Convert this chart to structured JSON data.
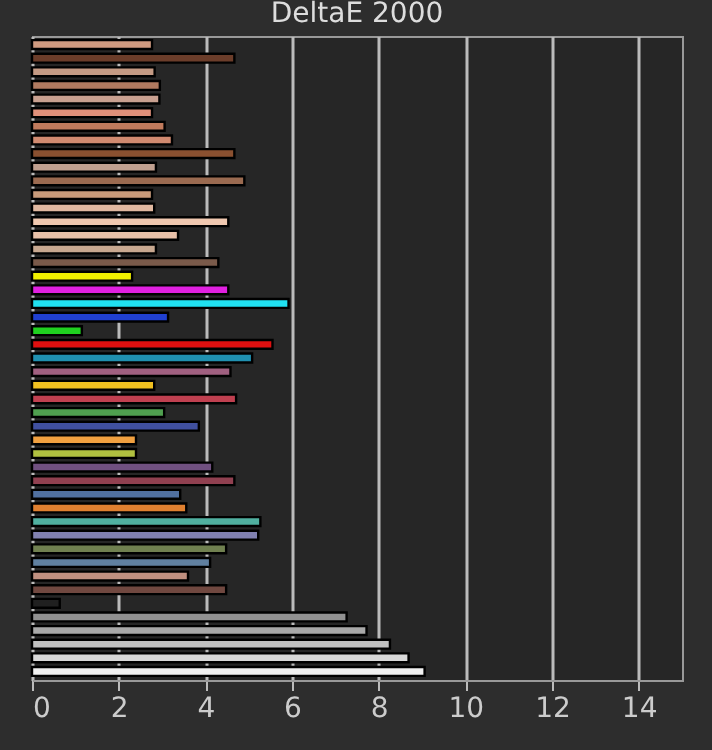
{
  "chart_data": {
    "type": "bar",
    "orientation": "horizontal",
    "title": "DeltaE 2000",
    "categories": [
      null,
      null,
      null,
      null,
      null,
      null,
      null,
      null,
      null,
      null,
      null,
      null,
      null,
      null,
      null,
      null,
      null,
      null,
      null,
      null,
      null,
      null,
      null,
      null,
      null,
      null,
      null,
      null,
      null,
      null,
      null,
      null,
      null,
      null,
      null,
      null,
      null,
      null,
      null,
      null,
      null,
      null,
      null,
      null,
      null,
      null,
      null
    ],
    "values": [
      2.77,
      4.67,
      2.83,
      2.95,
      2.94,
      2.77,
      3.06,
      3.23,
      4.67,
      2.86,
      4.9,
      2.77,
      2.82,
      4.53,
      3.37,
      2.86,
      4.3,
      2.31,
      4.53,
      5.92,
      3.14,
      1.15,
      5.55,
      5.08,
      4.58,
      2.82,
      4.71,
      3.05,
      3.85,
      2.4,
      2.4,
      4.16,
      4.67,
      3.42,
      3.56,
      5.27,
      5.22,
      4.48,
      4.11,
      3.6,
      4.48,
      0.64,
      7.26,
      7.72,
      8.26,
      8.69,
      9.06
    ],
    "colors": [
      "#d09a80",
      "#6b3d2a",
      "#c49a84",
      "#b07a60",
      "#c8a090",
      "#e0907a",
      "#c07a5c",
      "#d08a70",
      "#8a5030",
      "#c0a090",
      "#9a6a50",
      "#c89a7a",
      "#e0b8a0",
      "#f0c8b0",
      "#e8c0a8",
      "#c8a890",
      "#7a5a4a",
      "#f0f000",
      "#e020e0",
      "#20e0f0",
      "#2040d0",
      "#20d020",
      "#e01010",
      "#2090b0",
      "#a06080",
      "#f0c020",
      "#c04050",
      "#50a050",
      "#4050a0",
      "#f0a040",
      "#b0c040",
      "#705080",
      "#904050",
      "#5070a0",
      "#e08030",
      "#50b0a0",
      "#8080b0",
      "#708050",
      "#6080a0",
      "#c09080",
      "#704840",
      "#202020",
      "#909090",
      "#a8a8a8",
      "#c0c0c0",
      "#d8d8d8",
      "#f0f0f0"
    ],
    "xlim": [
      0,
      15
    ],
    "xticks": [
      0,
      2,
      4,
      6,
      8,
      10,
      12,
      14
    ],
    "grid": "x",
    "legend": false
  }
}
